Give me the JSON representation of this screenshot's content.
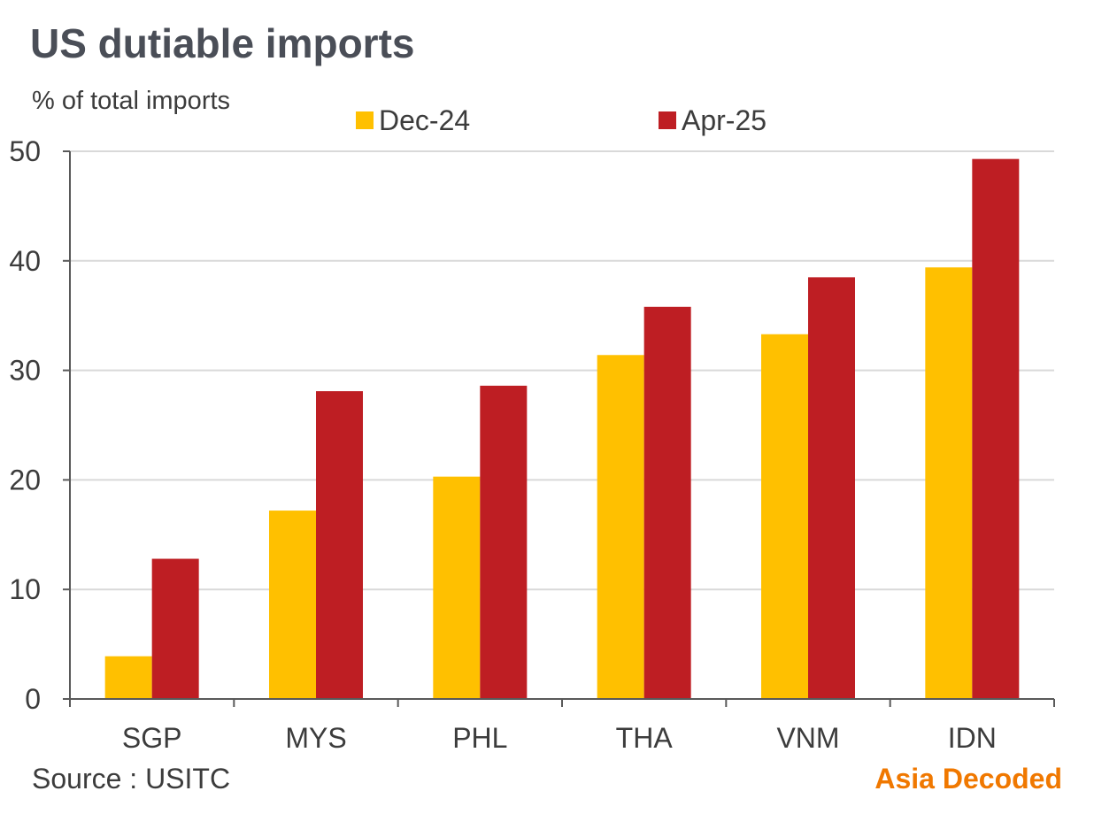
{
  "header": {
    "title": "US dutiable imports",
    "subtitle": "% of total imports"
  },
  "footer": {
    "source": "Source : USITC",
    "brand": "Asia Decoded"
  },
  "colors": {
    "dec24": "#FFC000",
    "apr25": "#BE1E23",
    "brand": "#F07800",
    "grid": "#D9D9D9",
    "axis": "#595959",
    "text": "#3C3C3C"
  },
  "chart_data": {
    "type": "bar",
    "title": "US dutiable imports",
    "ylabel": "% of total imports",
    "xlabel": "",
    "categories": [
      "SGP",
      "MYS",
      "PHL",
      "THA",
      "VNM",
      "IDN"
    ],
    "series": [
      {
        "name": "Dec-24",
        "values": [
          3.9,
          17.2,
          20.3,
          31.4,
          33.3,
          39.4
        ]
      },
      {
        "name": "Apr-25",
        "values": [
          12.8,
          28.1,
          28.6,
          35.8,
          38.5,
          49.3
        ]
      }
    ],
    "ylim": [
      0,
      50
    ],
    "yticks": [
      0,
      10,
      20,
      30,
      40,
      50
    ],
    "grid": true,
    "legend": "top"
  }
}
